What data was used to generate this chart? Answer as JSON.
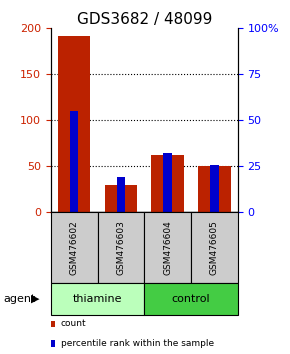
{
  "title": "GDS3682 / 48099",
  "samples": [
    "GSM476602",
    "GSM476603",
    "GSM476604",
    "GSM476605"
  ],
  "red_values": [
    192,
    30,
    62,
    50
  ],
  "blue_values_scaled": [
    110,
    38,
    65,
    51
  ],
  "left_ylim": [
    0,
    200
  ],
  "right_ylim": [
    0,
    100
  ],
  "left_yticks": [
    0,
    50,
    100,
    150,
    200
  ],
  "right_yticks": [
    0,
    25,
    50,
    75,
    100
  ],
  "right_yticklabels": [
    "0",
    "25",
    "50",
    "75",
    "100%"
  ],
  "agent_groups": [
    {
      "label": "thiamine",
      "indices": [
        0,
        1
      ],
      "color": "#bbffbb"
    },
    {
      "label": "control",
      "indices": [
        2,
        3
      ],
      "color": "#44cc44"
    }
  ],
  "red_bar_width": 0.7,
  "blue_bar_width": 0.18,
  "red_color": "#bb2200",
  "blue_color": "#0000cc",
  "sample_bg_color": "#cccccc",
  "title_fontsize": 11,
  "tick_fontsize": 8,
  "agent_label": "agent",
  "legend_items": [
    {
      "color": "#bb2200",
      "label": "count"
    },
    {
      "color": "#0000cc",
      "label": "percentile rank within the sample"
    }
  ],
  "hgrid_vals": [
    50,
    100,
    150
  ]
}
